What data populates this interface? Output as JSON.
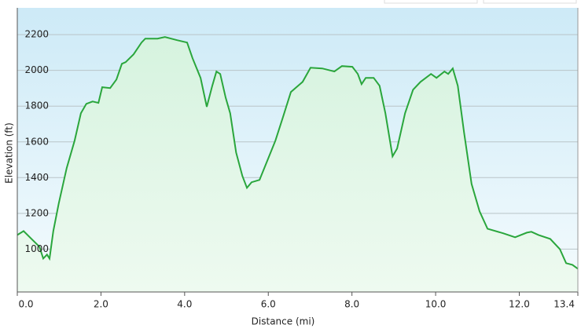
{
  "chart_data": {
    "type": "area",
    "x_label": "Distance    (mi)",
    "y_label": "Elevation (ft)",
    "x": [
      0,
      0.15,
      0.34,
      0.53,
      0.62,
      0.71,
      0.77,
      0.86,
      0.99,
      1.18,
      1.37,
      1.52,
      1.65,
      1.8,
      1.94,
      2.03,
      2.22,
      2.37,
      2.5,
      2.59,
      2.78,
      2.97,
      3.06,
      3.35,
      3.53,
      3.82,
      4.06,
      4.19,
      4.38,
      4.53,
      4.66,
      4.76,
      4.85,
      4.98,
      5.09,
      5.23,
      5.38,
      5.49,
      5.6,
      5.79,
      5.98,
      6.17,
      6.35,
      6.54,
      6.82,
      7.01,
      7.29,
      7.58,
      7.76,
      8.01,
      8.14,
      8.23,
      8.33,
      8.52,
      8.66,
      8.8,
      8.97,
      9.08,
      9.27,
      9.46,
      9.64,
      9.89,
      10.02,
      10.21,
      10.3,
      10.41,
      10.53,
      10.68,
      10.86,
      11.05,
      11.24,
      11.62,
      11.9,
      12.18,
      12.29,
      12.46,
      12.74,
      12.97,
      13.12,
      13.27,
      13.4
    ],
    "series": [
      {
        "color": "#2aa63c",
        "values": [
          1079,
          1101,
          1057,
          1013,
          947,
          969,
          947,
          1101,
          1255,
          1453,
          1607,
          1760,
          1813,
          1826,
          1818,
          1906,
          1901,
          1949,
          2037,
          2046,
          2090,
          2156,
          2178,
          2178,
          2187,
          2169,
          2156,
          2068,
          1958,
          1796,
          1914,
          1994,
          1980,
          1848,
          1760,
          1541,
          1409,
          1343,
          1374,
          1387,
          1497,
          1607,
          1738,
          1879,
          1936,
          2015,
          2011,
          1994,
          2024,
          2020,
          1980,
          1923,
          1958,
          1958,
          1914,
          1760,
          1519,
          1563,
          1760,
          1892,
          1936,
          1980,
          1958,
          1994,
          1980,
          2011,
          1914,
          1651,
          1365,
          1211,
          1114,
          1088,
          1066,
          1092,
          1097,
          1079,
          1057,
          1000,
          921,
          912,
          890
        ]
      }
    ],
    "xlim": [
      0,
      13.4
    ],
    "xticks": [
      {
        "value": 0,
        "label": "0.0"
      },
      {
        "value": 2,
        "label": "2.0"
      },
      {
        "value": 4,
        "label": "4.0"
      },
      {
        "value": 6,
        "label": "6.0"
      },
      {
        "value": 8,
        "label": "8.0"
      },
      {
        "value": 10,
        "label": "10.0"
      },
      {
        "value": 12,
        "label": "12.0"
      },
      13.4
    ],
    "ylim": [
      760,
      2350
    ],
    "yticks": [
      1000,
      1200,
      1400,
      1600,
      1800,
      2000,
      2200
    ],
    "grid": true
  }
}
